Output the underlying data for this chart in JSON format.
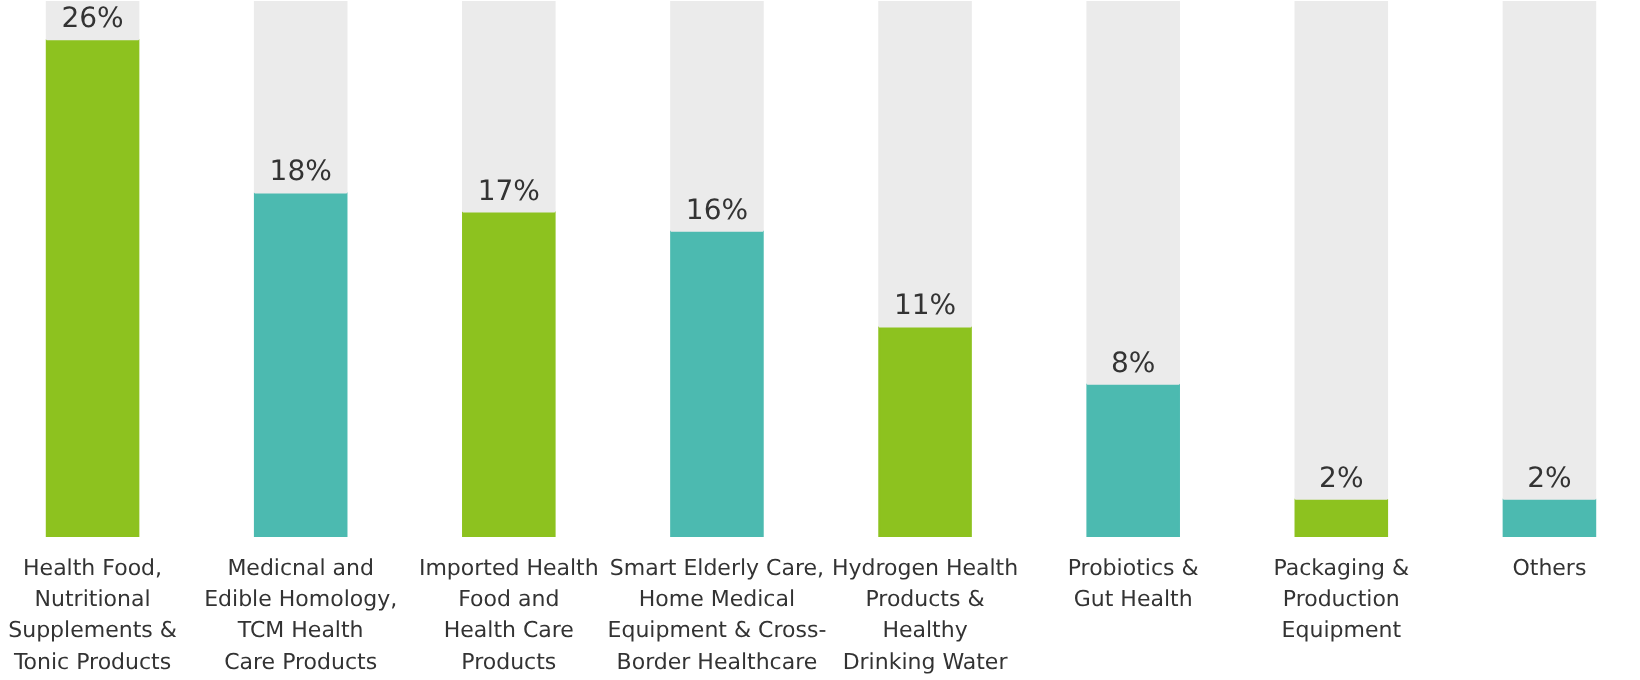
{
  "chart_data": {
    "type": "bar",
    "categories": [
      "Health Food,\nNutritional\nSupplements &\nTonic Products",
      "Medicnal and\nEdible Homology,\nTCM Health\nCare Products",
      "Imported Health\nFood and\nHealth Care\nProducts",
      "Smart Elderly Care,\nHome Medical\nEquipment & Cross-\nBorder Healthcare",
      "Hydrogen Health\nProducts &\nHealthy\nDrinking Water",
      "Probiotics &\nGut Health",
      "Packaging &\nProduction\nEquipment",
      "Others"
    ],
    "series": [
      {
        "colors": [
          "#8dc21f",
          "#4cbab0",
          "#8dc21f",
          "#4cbab0",
          "#8dc21f",
          "#4cbab0",
          "#8dc21f",
          "#4cbab0"
        ],
        "values": [
          26,
          18,
          17,
          16,
          11,
          8,
          2,
          2
        ],
        "value_labels": [
          "26%",
          "18%",
          "17%",
          "16%",
          "11%",
          "8%",
          "2%",
          "2%"
        ]
      },
      {
        "color": "#ebebeb",
        "values": [
          2,
          10,
          11,
          12,
          17,
          20,
          26,
          26
        ]
      }
    ],
    "stacked": true,
    "grid": false,
    "tick_labels": "x"
  }
}
